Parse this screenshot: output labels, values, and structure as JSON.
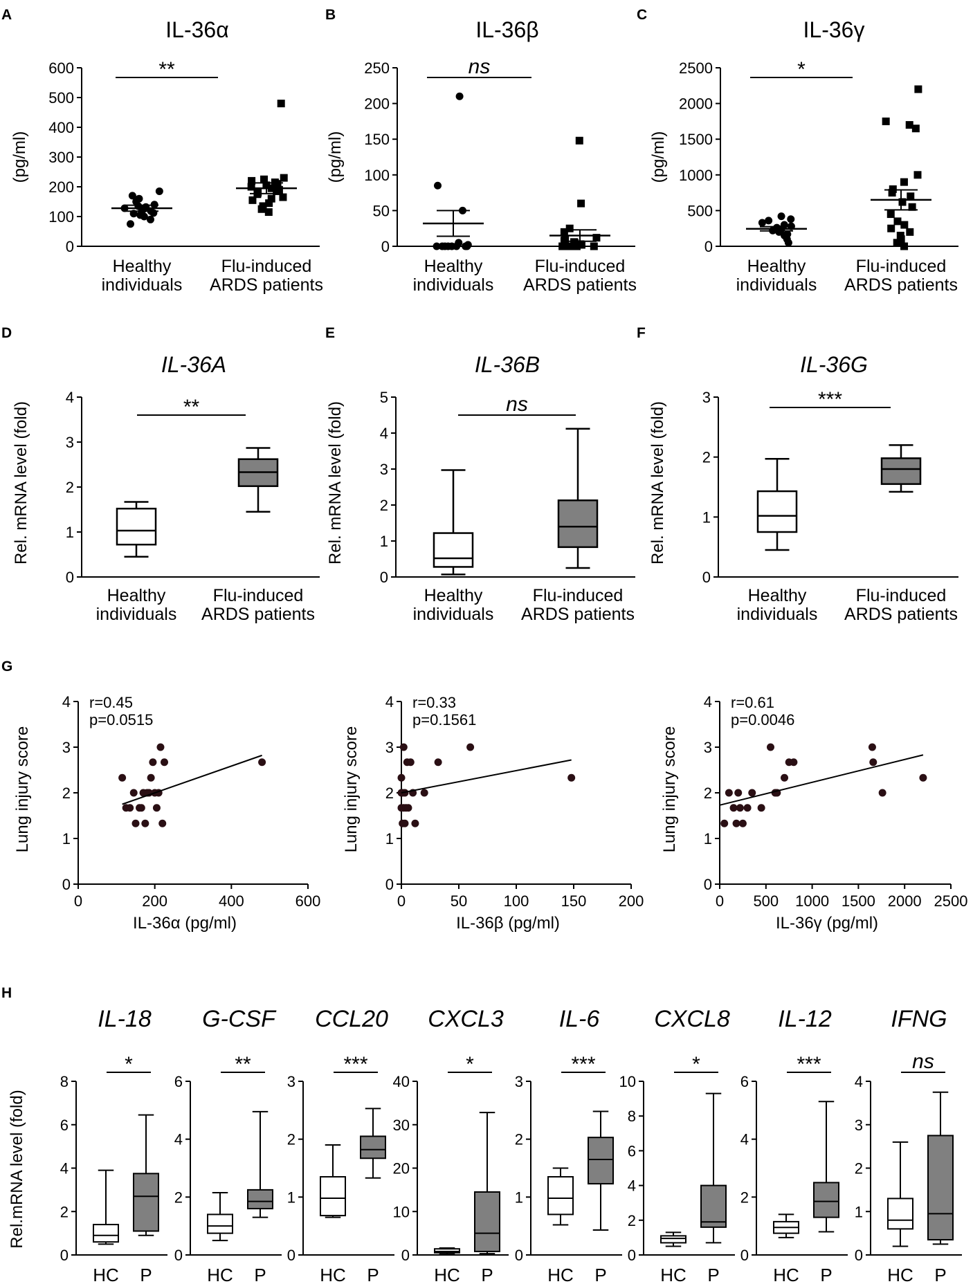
{
  "chart_data": [
    {
      "panel": "A",
      "type": "scatter",
      "title": "IL-36α",
      "title_italic": false,
      "ylabel": "(pg/ml)",
      "ylim": [
        0,
        600
      ],
      "yticks": [
        0,
        100,
        200,
        300,
        400,
        500,
        600
      ],
      "categories": [
        "Healthy\nindividuals",
        "Flu-induced\nARDS patients"
      ],
      "groups": [
        {
          "marker": "circle",
          "mean": 128,
          "sem": 10,
          "points": [
            75,
            90,
            100,
            105,
            110,
            112,
            118,
            120,
            122,
            125,
            128,
            130,
            132,
            135,
            140,
            150,
            160,
            170,
            185
          ]
        },
        {
          "marker": "square",
          "mean": 195,
          "sem": 18,
          "points": [
            115,
            125,
            135,
            145,
            155,
            160,
            165,
            175,
            180,
            185,
            190,
            195,
            200,
            205,
            210,
            215,
            220,
            225,
            230,
            480
          ]
        }
      ],
      "significance": "**",
      "sig_italic": false
    },
    {
      "panel": "B",
      "type": "scatter",
      "title": "IL-36β",
      "title_italic": false,
      "ylabel": "(pg/ml)",
      "ylim": [
        0,
        250
      ],
      "yticks": [
        0,
        50,
        100,
        150,
        200,
        250
      ],
      "categories": [
        "Healthy\nindividuals",
        "Flu-induced\nARDS patients"
      ],
      "groups": [
        {
          "marker": "circle",
          "mean": 32,
          "sem": 18,
          "points": [
            0,
            0,
            0,
            0,
            0,
            0,
            0,
            0,
            2,
            5,
            50,
            85,
            210
          ]
        },
        {
          "marker": "square",
          "mean": 15,
          "sem": 8,
          "points": [
            0,
            0,
            0,
            0,
            0,
            0,
            0,
            0,
            0,
            2,
            3,
            5,
            6,
            8,
            10,
            12,
            20,
            25,
            60,
            148
          ]
        }
      ],
      "significance": "ns",
      "sig_italic": true
    },
    {
      "panel": "C",
      "type": "scatter",
      "title": "IL-36γ",
      "title_italic": false,
      "ylabel": "(pg/ml)",
      "ylim": [
        0,
        2500
      ],
      "yticks": [
        0,
        500,
        1000,
        1500,
        2000,
        2500
      ],
      "categories": [
        "Healthy\nindividuals",
        "Flu-induced\nARDS patients"
      ],
      "groups": [
        {
          "marker": "circle",
          "mean": 245,
          "sem": 30,
          "points": [
            50,
            100,
            150,
            170,
            200,
            220,
            240,
            260,
            280,
            300,
            330,
            360,
            380,
            420
          ]
        },
        {
          "marker": "square",
          "mean": 650,
          "sem": 140,
          "points": [
            0,
            50,
            100,
            150,
            200,
            250,
            300,
            350,
            450,
            550,
            620,
            700,
            750,
            800,
            900,
            1000,
            1650,
            1700,
            1750,
            2200
          ]
        }
      ],
      "significance": "*",
      "sig_italic": false
    },
    {
      "panel": "D",
      "type": "box",
      "title": "IL-36A",
      "title_italic": true,
      "ylabel": "Rel. mRNA level (fold)",
      "ylim": [
        0,
        4
      ],
      "yticks": [
        0,
        1,
        2,
        3,
        4
      ],
      "categories": [
        "Healthy\nindividuals",
        "Flu-induced\nARDS patients"
      ],
      "boxes": [
        {
          "min": 0.45,
          "q1": 0.72,
          "median": 1.03,
          "q3": 1.52,
          "max": 1.67,
          "fill": "#ffffff"
        },
        {
          "min": 1.45,
          "q1": 2.02,
          "median": 2.33,
          "q3": 2.62,
          "max": 2.87,
          "fill": "#808080"
        }
      ],
      "significance": "**",
      "sig_italic": false
    },
    {
      "panel": "E",
      "type": "box",
      "title": "IL-36B",
      "title_italic": true,
      "ylabel": "Rel. mRNA level (fold)",
      "ylim": [
        0,
        5
      ],
      "yticks": [
        0,
        1,
        2,
        3,
        4,
        5
      ],
      "categories": [
        "Healthy\nindividuals",
        "Flu-induced\nARDS patients"
      ],
      "boxes": [
        {
          "min": 0.07,
          "q1": 0.28,
          "median": 0.52,
          "q3": 1.22,
          "max": 2.97,
          "fill": "#ffffff"
        },
        {
          "min": 0.25,
          "q1": 0.83,
          "median": 1.4,
          "q3": 2.13,
          "max": 4.12,
          "fill": "#808080"
        }
      ],
      "significance": "ns",
      "sig_italic": true
    },
    {
      "panel": "F",
      "type": "box",
      "title": "IL-36G",
      "title_italic": true,
      "ylabel": "Rel. mRNA level (fold)",
      "ylim": [
        0,
        3
      ],
      "yticks": [
        0,
        1,
        2,
        3
      ],
      "categories": [
        "Healthy\nindividuals",
        "Flu-induced\nARDS patients"
      ],
      "boxes": [
        {
          "min": 0.45,
          "q1": 0.75,
          "median": 1.02,
          "q3": 1.43,
          "max": 1.97,
          "fill": "#ffffff"
        },
        {
          "min": 1.42,
          "q1": 1.55,
          "median": 1.8,
          "q3": 1.98,
          "max": 2.2,
          "fill": "#808080"
        }
      ],
      "significance": "***",
      "sig_italic": false
    },
    {
      "panel": "G",
      "type": "scatter",
      "title": "",
      "xlabel": "IL-36α (pg/ml)",
      "ylabel": "Lung injury score",
      "xlim": [
        0,
        600
      ],
      "xticks": [
        0,
        200,
        400,
        600
      ],
      "ylim": [
        0,
        4
      ],
      "yticks": [
        0,
        1,
        2,
        3,
        4
      ],
      "r_text": "r=0.45",
      "p_text": "p=0.0515",
      "fit": {
        "x": [
          115,
          480
        ],
        "y": [
          1.75,
          2.82
        ]
      },
      "x": [
        115,
        125,
        135,
        145,
        150,
        160,
        165,
        170,
        175,
        180,
        185,
        190,
        195,
        200,
        205,
        210,
        215,
        220,
        225,
        480
      ],
      "y": [
        2.33,
        1.67,
        1.67,
        2.0,
        1.33,
        1.67,
        1.67,
        2.0,
        1.33,
        2.0,
        2.0,
        2.33,
        2.67,
        2.0,
        1.67,
        2.0,
        3.0,
        1.33,
        2.67,
        2.67
      ]
    },
    {
      "panel": "G",
      "type": "scatter",
      "title": "",
      "xlabel": "IL-36β (pg/ml)",
      "ylabel": "Lung injury score",
      "xlim": [
        0,
        200
      ],
      "xticks": [
        0,
        50,
        100,
        150,
        200
      ],
      "ylim": [
        0,
        4
      ],
      "yticks": [
        0,
        1,
        2,
        3,
        4
      ],
      "r_text": "r=0.33",
      "p_text": "p=0.1561",
      "fit": {
        "x": [
          0,
          148
        ],
        "y": [
          2.0,
          2.72
        ]
      },
      "x": [
        0,
        0,
        0,
        1,
        1,
        2,
        2,
        3,
        3,
        4,
        5,
        6,
        8,
        10,
        12,
        20,
        32,
        60,
        148
      ],
      "y": [
        2.33,
        2.0,
        1.67,
        1.33,
        2.0,
        1.67,
        3.0,
        1.33,
        2.0,
        1.67,
        2.67,
        1.67,
        2.67,
        2.0,
        1.33,
        2.0,
        2.67,
        3.0,
        2.33
      ]
    },
    {
      "panel": "G",
      "type": "scatter",
      "title": "",
      "xlabel": "IL-36γ (pg/ml)",
      "ylabel": "Lung injury score",
      "xlim": [
        0,
        2500
      ],
      "xticks": [
        0,
        500,
        1000,
        1500,
        2000,
        2500
      ],
      "ylim": [
        0,
        4
      ],
      "yticks": [
        0,
        1,
        2,
        3,
        4
      ],
      "r_text": "r=0.61",
      "p_text": "p=0.0046",
      "fit": {
        "x": [
          0,
          2200
        ],
        "y": [
          1.73,
          2.83
        ]
      },
      "x": [
        50,
        100,
        150,
        180,
        200,
        220,
        250,
        300,
        350,
        450,
        550,
        600,
        620,
        700,
        750,
        800,
        1650,
        1660,
        1760,
        2200
      ],
      "y": [
        1.33,
        2.0,
        1.67,
        1.33,
        2.0,
        1.67,
        1.33,
        1.67,
        2.0,
        1.67,
        3.0,
        2.0,
        2.0,
        2.33,
        2.67,
        2.67,
        3.0,
        2.67,
        2.0,
        2.33
      ]
    },
    {
      "panel": "H",
      "type": "box",
      "title": "IL-18",
      "ylabel": "Rel.mRNA level (fold)",
      "ylim": [
        0,
        8
      ],
      "yticks": [
        0,
        2,
        4,
        6,
        8
      ],
      "categories": [
        "HC",
        "P"
      ],
      "significance": "*",
      "boxes": [
        {
          "min": 0.5,
          "q1": 0.6,
          "median": 0.9,
          "q3": 1.4,
          "max": 3.9,
          "fill": "#ffffff"
        },
        {
          "min": 0.9,
          "q1": 1.1,
          "median": 2.7,
          "q3": 3.75,
          "max": 6.45,
          "fill": "#808080"
        }
      ]
    },
    {
      "panel": "H",
      "type": "box",
      "title": "G-CSF",
      "ylim": [
        0,
        6
      ],
      "yticks": [
        0,
        2,
        4,
        6
      ],
      "categories": [
        "HC",
        "P"
      ],
      "significance": "**",
      "boxes": [
        {
          "min": 0.5,
          "q1": 0.75,
          "median": 1.0,
          "q3": 1.4,
          "max": 2.15,
          "fill": "#ffffff"
        },
        {
          "min": 1.3,
          "q1": 1.6,
          "median": 1.85,
          "q3": 2.25,
          "max": 4.95,
          "fill": "#808080"
        }
      ]
    },
    {
      "panel": "H",
      "type": "box",
      "title": "CCL20",
      "ylim": [
        0,
        3
      ],
      "yticks": [
        0,
        1,
        2,
        3
      ],
      "categories": [
        "HC",
        "P"
      ],
      "significance": "***",
      "boxes": [
        {
          "min": 0.65,
          "q1": 0.68,
          "median": 0.98,
          "q3": 1.35,
          "max": 1.9,
          "fill": "#ffffff"
        },
        {
          "min": 1.33,
          "q1": 1.67,
          "median": 1.82,
          "q3": 2.05,
          "max": 2.53,
          "fill": "#808080"
        }
      ]
    },
    {
      "panel": "H",
      "type": "box",
      "title": "CXCL3",
      "ylim": [
        0,
        40
      ],
      "yticks": [
        0,
        10,
        20,
        30,
        40
      ],
      "categories": [
        "HC",
        "P"
      ],
      "significance": "*",
      "boxes": [
        {
          "min": 0.2,
          "q1": 0.5,
          "median": 0.8,
          "q3": 1.4,
          "max": 1.6,
          "fill": "#ffffff"
        },
        {
          "min": 0.3,
          "q1": 0.8,
          "median": 5.0,
          "q3": 14.5,
          "max": 32.8,
          "fill": "#808080"
        }
      ]
    },
    {
      "panel": "H",
      "type": "box",
      "title": "IL-6",
      "ylim": [
        0,
        3
      ],
      "yticks": [
        0,
        1,
        2,
        3
      ],
      "categories": [
        "HC",
        "P"
      ],
      "significance": "***",
      "boxes": [
        {
          "min": 0.52,
          "q1": 0.7,
          "median": 0.98,
          "q3": 1.35,
          "max": 1.5,
          "fill": "#ffffff"
        },
        {
          "min": 0.43,
          "q1": 1.23,
          "median": 1.65,
          "q3": 2.03,
          "max": 2.48,
          "fill": "#808080"
        }
      ]
    },
    {
      "panel": "H",
      "type": "box",
      "title": "CXCL8",
      "ylim": [
        0,
        10
      ],
      "yticks": [
        0,
        2,
        4,
        6,
        8,
        10
      ],
      "categories": [
        "HC",
        "P"
      ],
      "significance": "*",
      "boxes": [
        {
          "min": 0.5,
          "q1": 0.7,
          "median": 0.95,
          "q3": 1.1,
          "max": 1.3,
          "fill": "#ffffff"
        },
        {
          "min": 0.7,
          "q1": 1.6,
          "median": 1.9,
          "q3": 4.0,
          "max": 9.3,
          "fill": "#808080"
        }
      ]
    },
    {
      "panel": "H",
      "type": "box",
      "title": "IL-12",
      "ylim": [
        0,
        6
      ],
      "yticks": [
        0,
        2,
        4,
        6
      ],
      "categories": [
        "HC",
        "P"
      ],
      "significance": "***",
      "boxes": [
        {
          "min": 0.6,
          "q1": 0.75,
          "median": 0.95,
          "q3": 1.15,
          "max": 1.4,
          "fill": "#ffffff"
        },
        {
          "min": 0.8,
          "q1": 1.3,
          "median": 1.85,
          "q3": 2.5,
          "max": 5.3,
          "fill": "#808080"
        }
      ]
    },
    {
      "panel": "H",
      "type": "box",
      "title": "IFNG",
      "ylim": [
        0,
        4
      ],
      "yticks": [
        0,
        1,
        2,
        3,
        4
      ],
      "categories": [
        "HC",
        "P"
      ],
      "significance": "ns",
      "sig_italic": true,
      "boxes": [
        {
          "min": 0.2,
          "q1": 0.6,
          "median": 0.8,
          "q3": 1.3,
          "max": 2.6,
          "fill": "#ffffff"
        },
        {
          "min": 0.25,
          "q1": 0.35,
          "median": 0.95,
          "q3": 2.75,
          "max": 3.75,
          "fill": "#808080"
        }
      ]
    }
  ]
}
